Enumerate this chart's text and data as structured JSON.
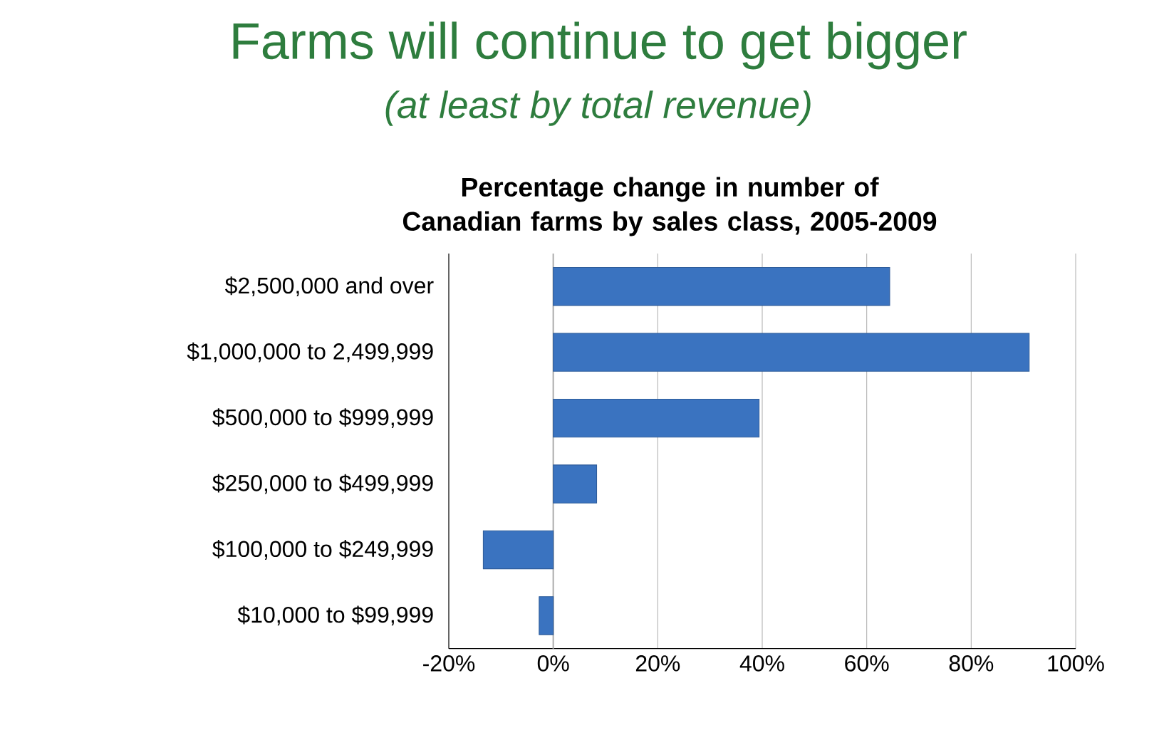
{
  "chart_data": {
    "type": "bar",
    "orientation": "horizontal",
    "title": "Farms will continue to get bigger",
    "subtitle": "(at least by total revenue)",
    "annotations": [
      "Percentage change in number of Canadian farms by sales class, 2005-2009"
    ],
    "categories": [
      "$2,500,000 and over",
      "$1,000,000 to 2,499,999",
      "$500,000 to $999,999",
      "$250,000 to $499,999",
      "$100,000 to $249,999",
      "$10,000 to $99,999"
    ],
    "values": [
      64.4,
      91.1,
      39.4,
      8.3,
      -13.4,
      -2.7
    ],
    "color": "#3a73c0",
    "xlim": [
      -20,
      100
    ],
    "xticks": [
      {
        "value": -20,
        "label": "-20%"
      },
      {
        "value": 0,
        "label": "0%"
      },
      {
        "value": 20,
        "label": "20%"
      },
      {
        "value": 40,
        "label": "40%"
      },
      {
        "value": 60,
        "label": "60%"
      },
      {
        "value": 80,
        "label": "80%"
      },
      {
        "value": 100,
        "label": "100%"
      }
    ],
    "grid": "x"
  }
}
